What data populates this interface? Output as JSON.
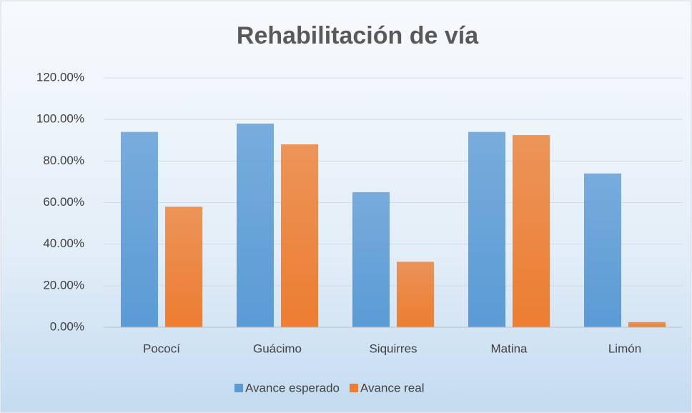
{
  "chart_data": {
    "type": "bar",
    "title": "Rehabilitación de vía",
    "categories": [
      "Pococí",
      "Guácimo",
      "Siquirres",
      "Matina",
      "Limón"
    ],
    "series": [
      {
        "name": "Avance esperado",
        "color": "#5b9bd5",
        "values": [
          94,
          98,
          65,
          94,
          74
        ]
      },
      {
        "name": "Avance real",
        "color": "#ed7d31",
        "values": [
          58,
          88,
          31.5,
          92.5,
          2.5
        ]
      }
    ],
    "ylim": [
      0,
      120
    ],
    "yticks": [
      {
        "value": 0,
        "label": "0.00%"
      },
      {
        "value": 20,
        "label": "20.00%"
      },
      {
        "value": 40,
        "label": "40.00%"
      },
      {
        "value": 60,
        "label": "60.00%"
      },
      {
        "value": 80,
        "label": "80.00%"
      },
      {
        "value": 100,
        "label": "100.00%"
      },
      {
        "value": 120,
        "label": "120.00%"
      }
    ],
    "grid": true,
    "legend": "bottom"
  }
}
